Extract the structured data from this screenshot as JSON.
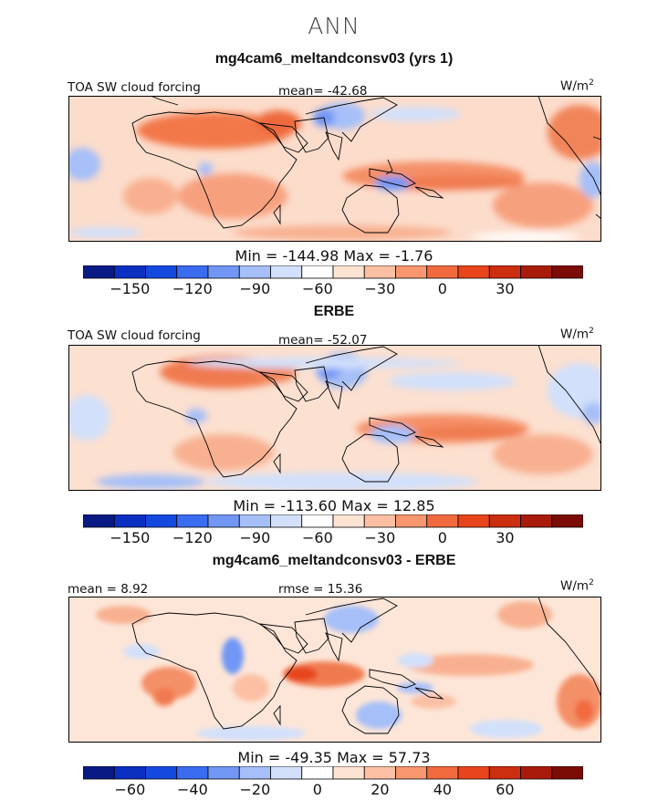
{
  "figure": {
    "season": "ANN",
    "units": "W/m",
    "units_exp": "2"
  },
  "chart_data": [
    {
      "type": "heatmap",
      "title": "mg4cam6_meltandconsv03 (yrs 1)",
      "left_label": "TOA SW cloud forcing",
      "mean_label": "mean=",
      "mean": "-42.68",
      "min_label": "Min =",
      "min": "-144.98",
      "max_label": "Max =",
      "max": "-1.76",
      "colorbar": {
        "colors": [
          "#0a1a85",
          "#0b2fc0",
          "#1449e0",
          "#3a6cf0",
          "#7196f4",
          "#a6bff8",
          "#d2e0fb",
          "#ffffff",
          "#fde3d2",
          "#fbc0a4",
          "#f7966f",
          "#f06a3e",
          "#e8451c",
          "#cc2e10",
          "#a81b0a",
          "#7a0c05"
        ],
        "tick_labels": [
          "-150",
          "-120",
          "-90",
          "-60",
          "-30",
          "0",
          "30"
        ],
        "tick_positions": [
          1.5,
          3.5,
          5.5,
          7.5,
          9.5,
          11.5,
          13.5
        ]
      }
    },
    {
      "type": "heatmap",
      "title": "ERBE",
      "left_label": "TOA SW cloud forcing",
      "mean_label": "mean=",
      "mean": "-52.07",
      "min_label": "Min =",
      "min": "-113.60",
      "max_label": "Max =",
      "max": "12.85",
      "colorbar": {
        "colors": [
          "#0a1a85",
          "#0b2fc0",
          "#1449e0",
          "#3a6cf0",
          "#7196f4",
          "#a6bff8",
          "#d2e0fb",
          "#ffffff",
          "#fde3d2",
          "#fbc0a4",
          "#f7966f",
          "#f06a3e",
          "#e8451c",
          "#cc2e10",
          "#a81b0a",
          "#7a0c05"
        ],
        "tick_labels": [
          "-150",
          "-120",
          "-90",
          "-60",
          "-30",
          "0",
          "30"
        ],
        "tick_positions": [
          1.5,
          3.5,
          5.5,
          7.5,
          9.5,
          11.5,
          13.5
        ]
      }
    },
    {
      "type": "heatmap",
      "title": "mg4cam6_meltandconsv03 - ERBE",
      "mean_label": "mean =",
      "mean": "8.92",
      "rmse_label": "rmse =",
      "rmse": "15.36",
      "min_label": "Min =",
      "min": "-49.35",
      "max_label": "Max =",
      "max": "57.73",
      "colorbar": {
        "colors": [
          "#0a1a85",
          "#0b2fc0",
          "#1449e0",
          "#3a6cf0",
          "#7196f4",
          "#a6bff8",
          "#d2e0fb",
          "#ffffff",
          "#fde3d2",
          "#fbc0a4",
          "#f7966f",
          "#f06a3e",
          "#e8451c",
          "#cc2e10",
          "#a81b0a",
          "#7a0c05"
        ],
        "tick_labels": [
          "-60",
          "-40",
          "-20",
          "0",
          "20",
          "40",
          "60"
        ],
        "tick_positions": [
          1.5,
          3.5,
          5.5,
          7.5,
          9.5,
          11.5,
          13.5
        ]
      }
    }
  ]
}
